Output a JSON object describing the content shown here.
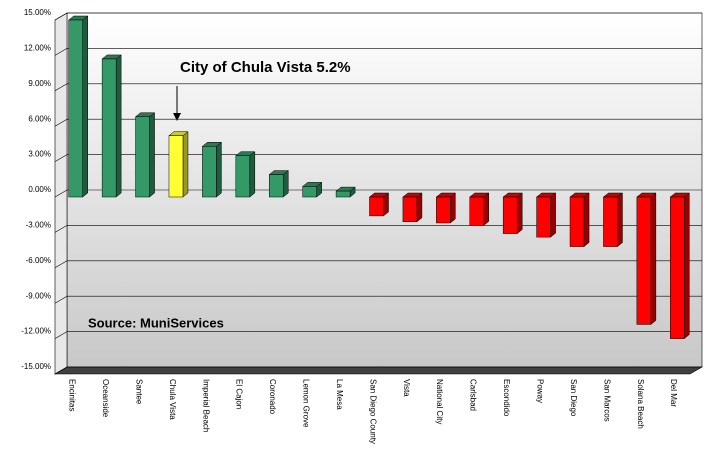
{
  "chart_data": {
    "type": "bar3d",
    "annotations": [
      "City of Chula Vista 5.2%",
      "Source: MuniServices"
    ],
    "categories": [
      "Encinitas",
      "Oceanside",
      "Santee",
      "Chula Vista",
      "Imperial Beach",
      "El Cajon",
      "Coronado",
      "Lemon Grove",
      "La Mesa",
      "San Diego County",
      "Vista",
      "National City",
      "Carlsbad",
      "Escondido",
      "Poway",
      "San Diego",
      "San Marcos",
      "Solana Beach",
      "Del Mar"
    ],
    "values": [
      15.0,
      11.7,
      6.8,
      5.2,
      4.3,
      3.5,
      1.9,
      0.9,
      0.5,
      -1.6,
      -2.1,
      -2.2,
      -2.4,
      -3.1,
      -3.4,
      -4.2,
      -4.2,
      -10.8,
      -12.0
    ],
    "colors": [
      "#339966",
      "#339966",
      "#339966",
      "#ffff33",
      "#339966",
      "#339966",
      "#339966",
      "#339966",
      "#339966",
      "#ff0000",
      "#ff0000",
      "#ff0000",
      "#ff0000",
      "#ff0000",
      "#ff0000",
      "#ff0000",
      "#ff0000",
      "#ff0000",
      "#ff0000"
    ],
    "ylim": [
      -15,
      15
    ],
    "yticks": [
      {
        "value": -15,
        "label": "-15.00%"
      },
      {
        "value": -12,
        "label": "-12.00%"
      },
      {
        "value": -9,
        "label": "-9.00%"
      },
      {
        "value": -6,
        "label": "-6.00%"
      },
      {
        "value": -3,
        "label": "-3.00%"
      },
      {
        "value": 0,
        "label": "0.00%"
      },
      {
        "value": 3,
        "label": "3.00%"
      },
      {
        "value": 6,
        "label": "6.00%"
      },
      {
        "value": 9,
        "label": "9.00%"
      },
      {
        "value": 12,
        "label": "12.00%"
      },
      {
        "value": 15,
        "label": "15.00%"
      }
    ],
    "grid": true
  }
}
